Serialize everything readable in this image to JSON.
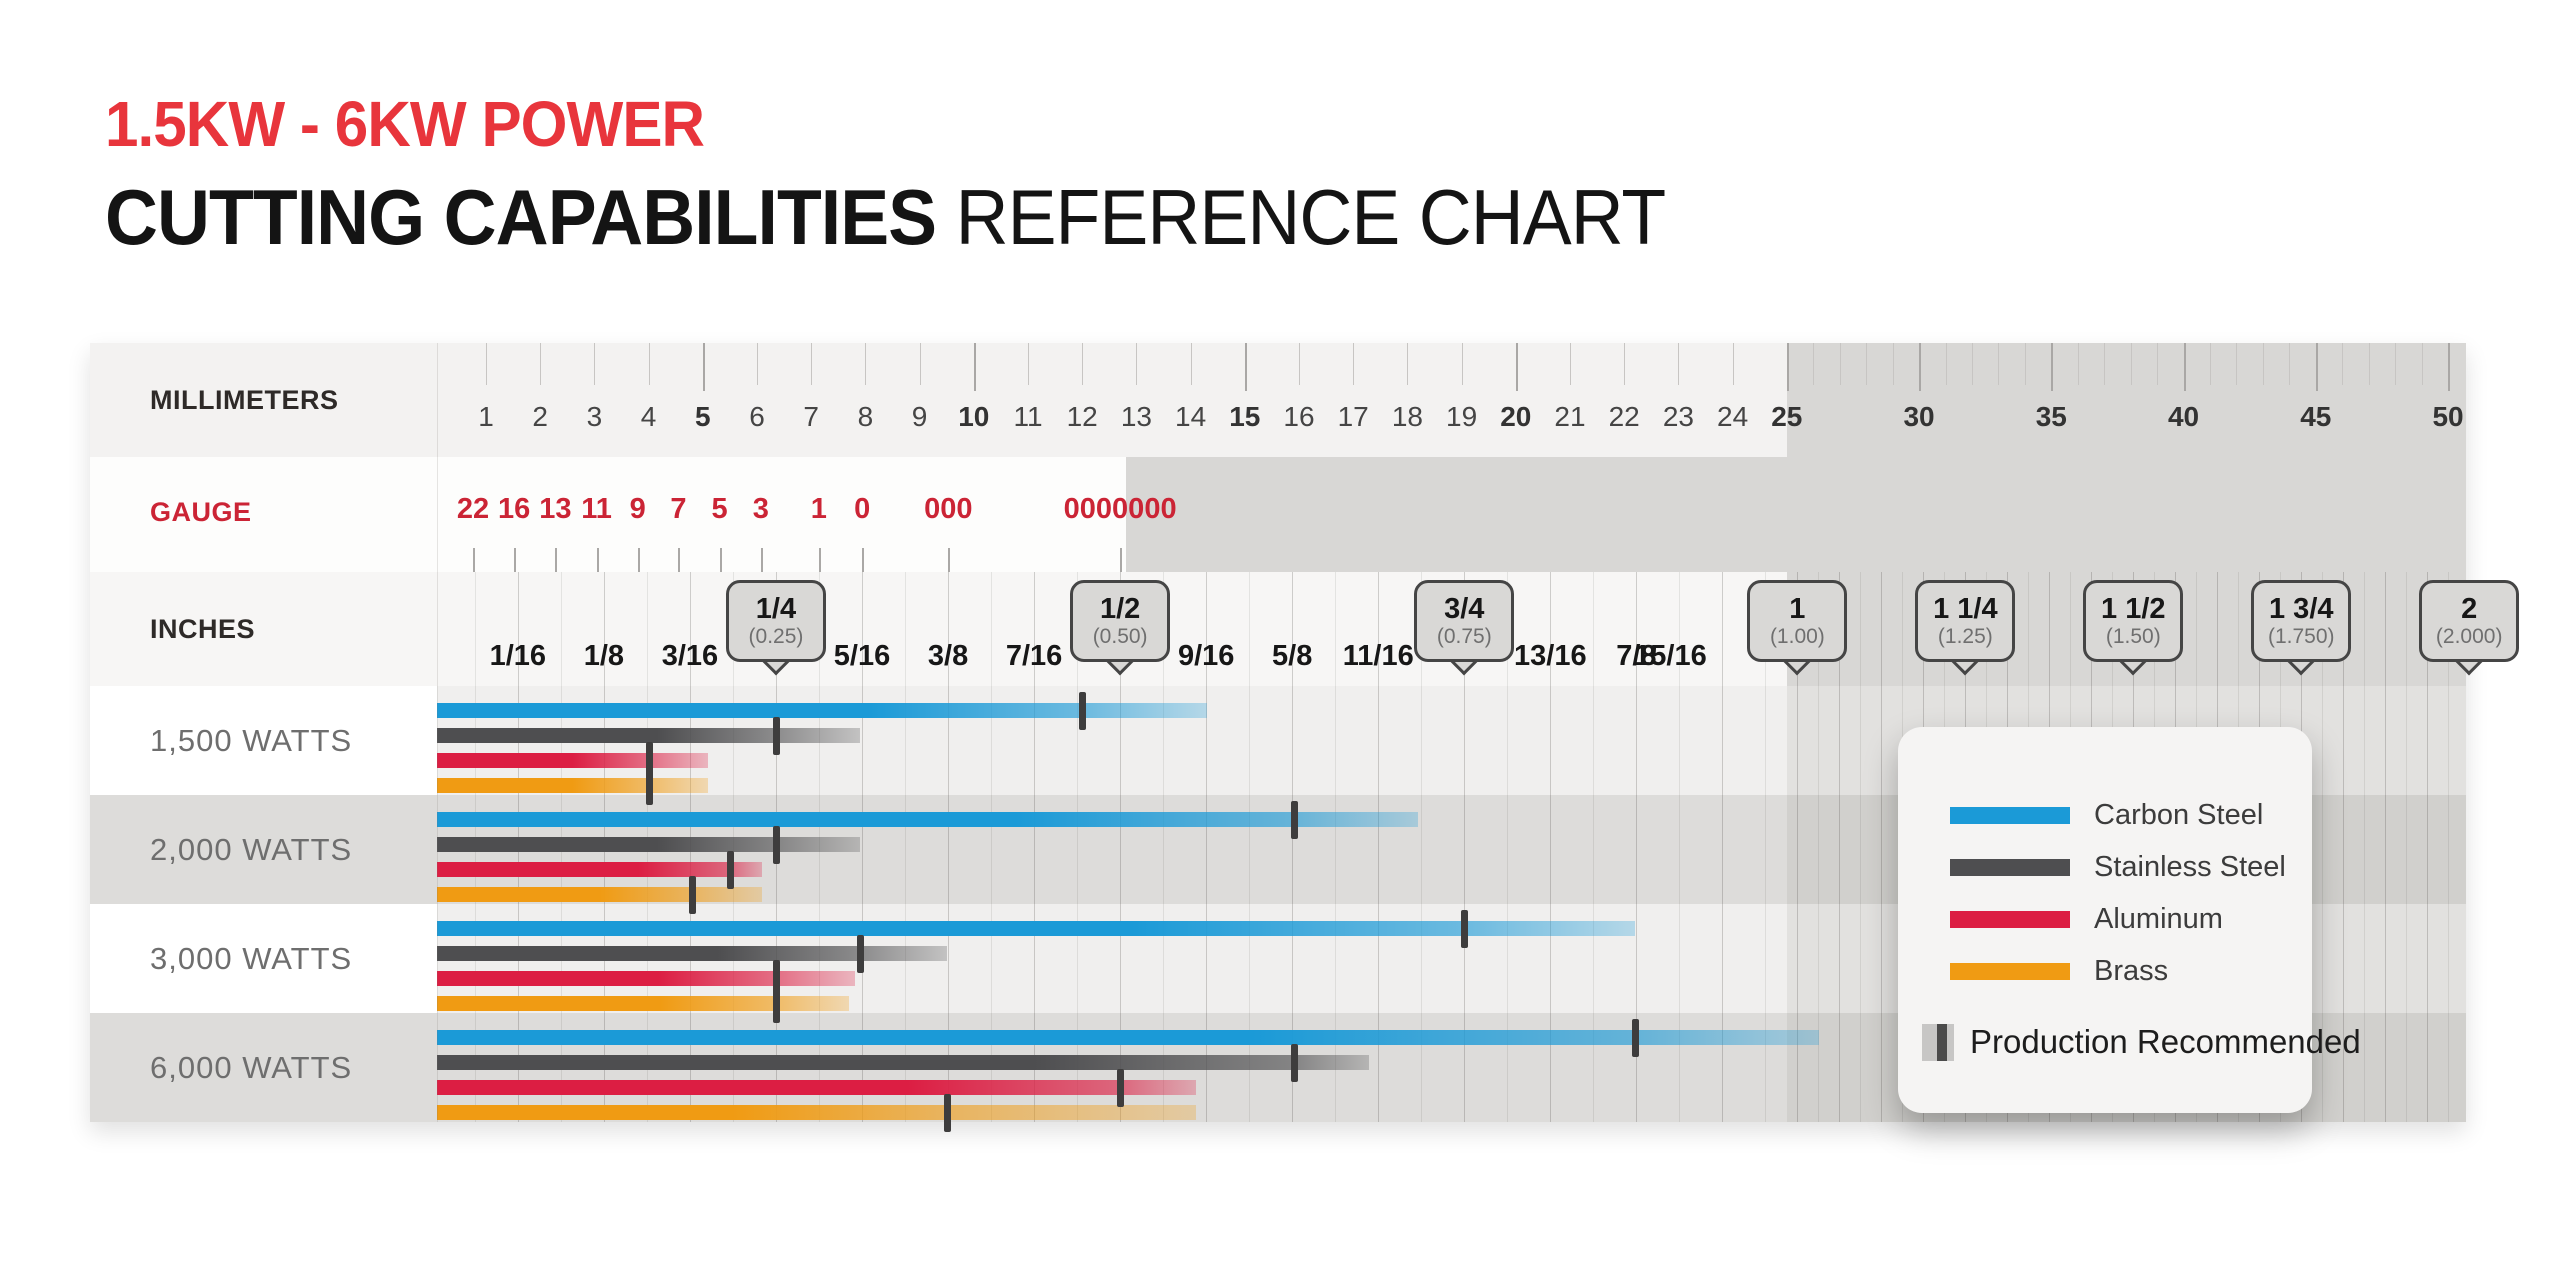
{
  "title": {
    "line1": "1.5KW - 6KW POWER",
    "line2_bold": "CUTTING CAPABILITIES",
    "line2_rest": " REFERENCE CHART",
    "line1_color": "#e8353c"
  },
  "axis": {
    "millimeters": {
      "label": "MILLIMETERS"
    },
    "gauge": {
      "label": "GAUGE",
      "items": [
        {
          "text": "22",
          "mm": 0.76
        },
        {
          "text": "16",
          "mm": 1.52
        },
        {
          "text": "13",
          "mm": 2.28
        },
        {
          "text": "11",
          "mm": 3.04
        },
        {
          "text": "9",
          "mm": 3.8
        },
        {
          "text": "7",
          "mm": 4.55
        },
        {
          "text": "5",
          "mm": 5.31
        },
        {
          "text": "3",
          "mm": 6.07
        },
        {
          "text": "1",
          "mm": 7.14
        },
        {
          "text": "0",
          "mm": 7.94
        },
        {
          "text": "000",
          "mm": 9.53
        },
        {
          "text": "0000000",
          "mm": 12.7
        }
      ]
    },
    "inches": {
      "label": "INCHES",
      "plain": [
        {
          "text": "1/16",
          "mm": 1.5875
        },
        {
          "text": "1/8",
          "mm": 3.175
        },
        {
          "text": "3/16",
          "mm": 4.7625
        },
        {
          "text": "5/16",
          "mm": 7.9375
        },
        {
          "text": "3/8",
          "mm": 9.525
        },
        {
          "text": "7/16",
          "mm": 11.1125
        },
        {
          "text": "9/16",
          "mm": 14.2875
        },
        {
          "text": "5/8",
          "mm": 15.875
        },
        {
          "text": "11/16",
          "mm": 17.4625
        },
        {
          "text": "13/16",
          "mm": 20.6375
        },
        {
          "text": "7/8",
          "mm": 22.225
        },
        {
          "text": "15/16",
          "mm": 23.8125,
          "dx": -52
        }
      ],
      "bubbles": [
        {
          "fraction": "1/4",
          "decimal": "(0.25)",
          "mm": 6.35
        },
        {
          "fraction": "1/2",
          "decimal": "(0.50)",
          "mm": 12.7
        },
        {
          "fraction": "3/4",
          "decimal": "(0.75)",
          "mm": 19.05
        },
        {
          "fraction": "1",
          "decimal": "(1.00)",
          "mm": 25.4
        },
        {
          "fraction": "1 1/4",
          "decimal": "(1.25)",
          "mm": 31.75
        },
        {
          "fraction": "1 1/2",
          "decimal": "(1.50)",
          "mm": 38.1
        },
        {
          "fraction": "1 3/4",
          "decimal": "(1.750)",
          "mm": 44.45
        },
        {
          "fraction": "2",
          "decimal": "(2.000)",
          "mm": 50.8
        }
      ]
    }
  },
  "legend": {
    "production_label": "Production Recommended"
  },
  "chart_data": {
    "type": "bar",
    "orientation": "horizontal",
    "title": "1.5KW - 6KW POWER CUTTING CAPABILITIES REFERENCE CHART",
    "categories": [
      "1,500 WATTS",
      "2,000 WATTS",
      "3,000 WATTS",
      "6,000 WATTS"
    ],
    "series": [
      {
        "name": "Carbon Steel",
        "color": "#1b9ad7",
        "production_mm": [
          12.0,
          15.9,
          19.05,
          22.2
        ],
        "max_mm": [
          14.3,
          18.2,
          22.2,
          26.2
        ]
      },
      {
        "name": "Stainless Steel",
        "color": "#4e4e50",
        "production_mm": [
          6.35,
          6.35,
          7.9,
          15.9
        ],
        "max_mm": [
          7.9,
          7.9,
          9.5,
          17.3
        ]
      },
      {
        "name": "Aluminum",
        "color": "#dc1e43",
        "production_mm": [
          4.0,
          5.5,
          6.35,
          12.7
        ],
        "max_mm": [
          5.1,
          6.1,
          7.8,
          14.1
        ]
      },
      {
        "name": "Brass",
        "color": "#f09b13",
        "production_mm": [
          4.0,
          4.8,
          6.35,
          9.5
        ],
        "max_mm": [
          5.1,
          6.1,
          7.7,
          14.1
        ]
      }
    ],
    "x_axes": {
      "millimeters": [
        1,
        2,
        3,
        4,
        5,
        6,
        7,
        8,
        9,
        10,
        11,
        12,
        13,
        14,
        15,
        16,
        17,
        18,
        19,
        20,
        21,
        22,
        23,
        24,
        25,
        30,
        35,
        40,
        45,
        50
      ],
      "gauge": [
        "22",
        "16",
        "13",
        "11",
        "9",
        "7",
        "5",
        "3",
        "1",
        "0",
        "000",
        "0000000"
      ],
      "inches": [
        "1/16",
        "1/8",
        "3/16",
        "1/4 (0.25)",
        "5/16",
        "3/8",
        "7/16",
        "1/2 (0.50)",
        "9/16",
        "5/8",
        "11/16",
        "3/4 (0.75)",
        "13/16",
        "7/8",
        "15/16",
        "1 (1.00)",
        "1 1/4 (1.25)",
        "1 1/2 (1.50)",
        "1 3/4 (1.750)",
        "2 (2.000)"
      ],
      "scale_note": "linear 1-25 mm, compressed 25-50 mm"
    },
    "tick_meaning": "Production Recommended thickness; faded bar tip = maximum capability",
    "grid": "vertical lines every 1/32 inch, darker every 1/16 inch",
    "legend_position": "overlay right"
  }
}
